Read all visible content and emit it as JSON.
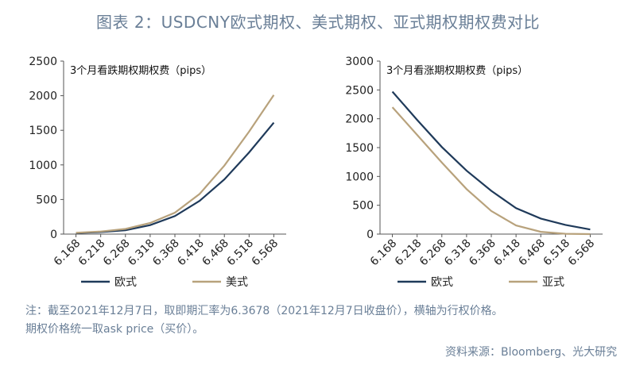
{
  "title": "图表 2：USDCNY欧式期权、美式期权、亚式期权期权费对比",
  "chart_data": [
    {
      "type": "line",
      "title": "3个月看跌期权期权费（pips）",
      "categories": [
        "6.168",
        "6.218",
        "6.268",
        "6.318",
        "6.368",
        "6.418",
        "6.468",
        "6.518",
        "6.568"
      ],
      "ylim": [
        0,
        2500
      ],
      "yticks": [
        0,
        500,
        1000,
        1500,
        2000,
        2500
      ],
      "grid": false,
      "legend_position": "bottom",
      "series": [
        {
          "name": "欧式",
          "color": "#1f3a5a",
          "values": [
            15,
            30,
            55,
            130,
            260,
            480,
            790,
            1180,
            1610
          ]
        },
        {
          "name": "美式",
          "color": "#b8a27c",
          "values": [
            20,
            38,
            75,
            160,
            310,
            580,
            990,
            1480,
            2010
          ]
        }
      ]
    },
    {
      "type": "line",
      "title": "3个月看涨期权期权费（pips）",
      "categories": [
        "6.168",
        "6.218",
        "6.268",
        "6.318",
        "6.368",
        "6.418",
        "6.468",
        "6.518",
        "6.568"
      ],
      "ylim": [
        0,
        3000
      ],
      "yticks": [
        0,
        500,
        1000,
        1500,
        2000,
        2500,
        3000
      ],
      "grid": false,
      "legend_position": "bottom",
      "series": [
        {
          "name": "欧式",
          "color": "#1f3a5a",
          "values": [
            2470,
            1980,
            1510,
            1100,
            750,
            450,
            270,
            160,
            80
          ]
        },
        {
          "name": "亚式",
          "color": "#b8a27c",
          "values": [
            2200,
            1720,
            1240,
            780,
            400,
            150,
            40,
            5,
            0
          ]
        }
      ]
    }
  ],
  "footnote": [
    "注：截至2021年12月7日，取即期汇率为6.3678（2021年12月7日收盘价），横轴为行权价格。",
    "期权价格统一取ask price（买价）。"
  ],
  "source": "资料来源：Bloomberg、光大研究"
}
